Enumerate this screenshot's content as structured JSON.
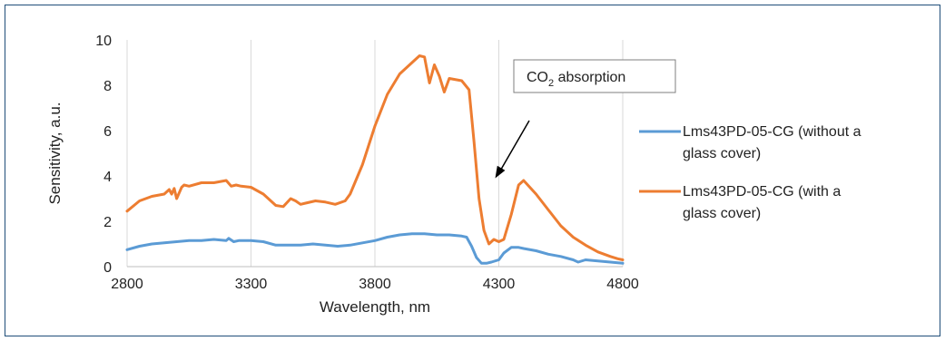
{
  "chart_data": {
    "type": "line",
    "xlabel": "Wavelength, nm",
    "ylabel": "Sensitivity, a.u.",
    "xlim": [
      2800,
      4800
    ],
    "ylim": [
      0,
      10
    ],
    "xticks": [
      2800,
      3300,
      3800,
      4300,
      4800
    ],
    "yticks": [
      0,
      2,
      4,
      6,
      8,
      10
    ],
    "grid": "vertical",
    "legend_position": "right",
    "series": [
      {
        "name": "Lms43PD-05-CG (without a glass cover)",
        "name_lines": [
          "Lms43PD-05-CG (without a",
          "glass cover)"
        ],
        "color": "#5b9bd5",
        "x": [
          2800,
          2850,
          2900,
          2950,
          3000,
          3050,
          3100,
          3150,
          3200,
          3210,
          3230,
          3250,
          3300,
          3350,
          3400,
          3450,
          3500,
          3550,
          3600,
          3650,
          3700,
          3750,
          3800,
          3850,
          3900,
          3950,
          4000,
          4050,
          4100,
          4150,
          4170,
          4190,
          4210,
          4230,
          4250,
          4270,
          4300,
          4320,
          4350,
          4380,
          4400,
          4450,
          4500,
          4550,
          4600,
          4620,
          4650,
          4700,
          4750,
          4800
        ],
        "y": [
          0.75,
          0.9,
          1.0,
          1.05,
          1.1,
          1.15,
          1.15,
          1.2,
          1.15,
          1.25,
          1.1,
          1.15,
          1.15,
          1.1,
          0.95,
          0.95,
          0.95,
          1.0,
          0.95,
          0.9,
          0.95,
          1.05,
          1.15,
          1.3,
          1.4,
          1.45,
          1.45,
          1.4,
          1.4,
          1.35,
          1.3,
          0.9,
          0.4,
          0.15,
          0.15,
          0.2,
          0.3,
          0.6,
          0.85,
          0.85,
          0.8,
          0.7,
          0.55,
          0.45,
          0.3,
          0.2,
          0.3,
          0.25,
          0.2,
          0.15
        ]
      },
      {
        "name": "Lms43PD-05-CG (with a glass cover)",
        "name_lines": [
          "Lms43PD-05-CG (with a",
          "glass cover)"
        ],
        "color": "#ed7d31",
        "x": [
          2800,
          2850,
          2900,
          2950,
          2970,
          2980,
          2990,
          3000,
          3020,
          3030,
          3050,
          3100,
          3150,
          3200,
          3220,
          3240,
          3260,
          3300,
          3350,
          3400,
          3430,
          3460,
          3480,
          3500,
          3520,
          3560,
          3600,
          3640,
          3680,
          3700,
          3750,
          3800,
          3850,
          3900,
          3950,
          3980,
          4000,
          4020,
          4040,
          4060,
          4080,
          4100,
          4150,
          4180,
          4200,
          4220,
          4240,
          4260,
          4280,
          4300,
          4320,
          4350,
          4380,
          4400,
          4450,
          4500,
          4550,
          4600,
          4650,
          4700,
          4750,
          4780,
          4800
        ],
        "y": [
          2.45,
          2.9,
          3.1,
          3.2,
          3.4,
          3.2,
          3.45,
          3.0,
          3.5,
          3.6,
          3.55,
          3.7,
          3.7,
          3.8,
          3.55,
          3.6,
          3.55,
          3.5,
          3.2,
          2.7,
          2.65,
          3.0,
          2.9,
          2.75,
          2.8,
          2.9,
          2.85,
          2.75,
          2.9,
          3.2,
          4.5,
          6.2,
          7.6,
          8.5,
          9.0,
          9.3,
          9.25,
          8.1,
          8.9,
          8.4,
          7.7,
          8.3,
          8.2,
          7.8,
          5.5,
          3.0,
          1.6,
          1.0,
          1.2,
          1.1,
          1.2,
          2.3,
          3.6,
          3.8,
          3.2,
          2.5,
          1.8,
          1.3,
          0.95,
          0.65,
          0.45,
          0.35,
          0.3
        ]
      }
    ],
    "annotation": {
      "text_main": "CO",
      "text_sub": "2",
      "text_rest": " absorption",
      "arrow_to": [
        4300,
        3.9
      ]
    }
  }
}
